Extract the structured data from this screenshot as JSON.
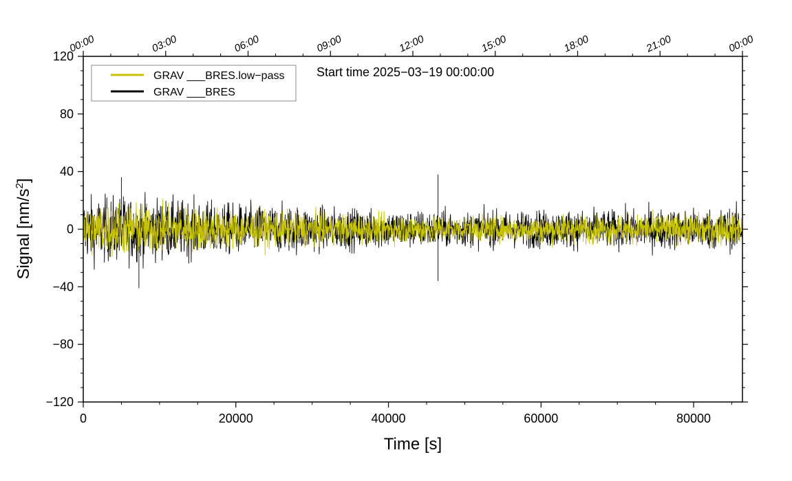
{
  "chart_data": {
    "type": "line",
    "title": "",
    "annotation": "Start time 2025−03−19 00:00:00",
    "xlabel": "Time [s]",
    "ylabel_main": "Signal [nm/s",
    "ylabel_sup": "2",
    "ylabel_close": "]",
    "xlim": [
      0,
      86400
    ],
    "ylim": [
      -120,
      120
    ],
    "x_ticks": [
      0,
      20000,
      40000,
      60000,
      80000
    ],
    "x_tick_labels": [
      "0",
      "20000",
      "40000",
      "60000",
      "80000"
    ],
    "y_ticks": [
      -120,
      -80,
      -40,
      0,
      40,
      80,
      120
    ],
    "y_tick_labels": [
      "−120",
      "−80",
      "−40",
      "0",
      "40",
      "80",
      "120"
    ],
    "top_axis": {
      "ticks": [
        0,
        10800,
        21600,
        32400,
        43200,
        54000,
        64800,
        75600,
        86400
      ],
      "labels": [
        "00:00",
        "03:00",
        "06:00",
        "09:00",
        "12:00",
        "15:00",
        "18:00",
        "21:00",
        "00:00"
      ]
    },
    "legend": [
      {
        "label": "GRAV ___BRES.low−pass",
        "color": "#c8c300"
      },
      {
        "label": "GRAV ___BRES",
        "color": "#000000"
      }
    ],
    "series": [
      {
        "name": "GRAV ___BRES",
        "color": "#000000",
        "envelope_x": [
          0,
          5000,
          10000,
          15000,
          20000,
          25000,
          30000,
          35000,
          40000,
          45000,
          46500,
          50000,
          55000,
          60000,
          65000,
          70000,
          75000,
          80000,
          86400
        ],
        "envelope_amplitude": [
          25,
          26,
          24,
          22,
          20,
          19,
          18,
          16,
          15,
          15,
          15,
          14,
          14,
          15,
          15,
          15,
          16,
          16,
          17
        ],
        "spikes": [
          {
            "x": 46500,
            "y": 38
          },
          {
            "x": 46500,
            "y": -36
          },
          {
            "x": 5000,
            "y": 36
          },
          {
            "x": 7300,
            "y": -41
          }
        ]
      },
      {
        "name": "GRAV ___BRES.low−pass",
        "color": "#c8c300",
        "envelope_x": [
          0,
          5000,
          10000,
          15000,
          20000,
          25000,
          30000,
          35000,
          40000,
          45000,
          50000,
          55000,
          60000,
          65000,
          70000,
          75000,
          80000,
          86400
        ],
        "envelope_amplitude": [
          20,
          21,
          19,
          17,
          15,
          14,
          13,
          12,
          11,
          11,
          10,
          10,
          11,
          11,
          11,
          12,
          12,
          12
        ]
      }
    ],
    "grid": false
  }
}
